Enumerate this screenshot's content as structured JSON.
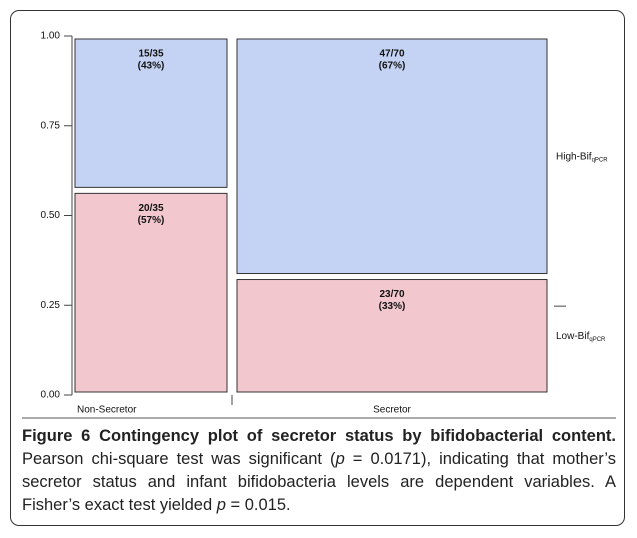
{
  "chart_data": {
    "type": "mosaic",
    "categories": [
      "Non-Secretor",
      "Secretor"
    ],
    "widths": [
      35,
      70
    ],
    "series": [
      {
        "name": "Low-Bif",
        "name_subscript": "qPCR",
        "color": "#f2c8ce",
        "values": [
          0.57,
          0.33
        ],
        "value_labels": [
          [
            "20/35",
            "(57%)"
          ],
          [
            "23/70",
            "(33%)"
          ]
        ]
      },
      {
        "name": "High-Bif",
        "name_subscript": "qPCR",
        "color": "#c4d3f3",
        "values": [
          0.43,
          0.67
        ],
        "value_labels": [
          [
            "15/35",
            "(43%)"
          ],
          [
            "47/70",
            "(67%)"
          ]
        ]
      }
    ],
    "ylim": [
      0,
      1
    ],
    "yticks": [
      {
        "value": 0,
        "label": "0.00"
      },
      {
        "value": 0.25,
        "label": "0.25"
      },
      {
        "value": 0.5,
        "label": "0.50"
      },
      {
        "value": 0.75,
        "label": "0.75"
      },
      {
        "value": 1,
        "label": "1.00"
      }
    ]
  },
  "caption": {
    "label": "Figure 6",
    "title": "Contingency plot of secretor status by bifidobacterial content.",
    "parts": [
      "Pearson chi-square test was significant (",
      "p",
      " = 0.0171), indicating that mother’s secretor status and infant bifidobacteria levels are dependent variables. A Fisher’s exact test yielded ",
      "p",
      " = 0.015."
    ]
  }
}
